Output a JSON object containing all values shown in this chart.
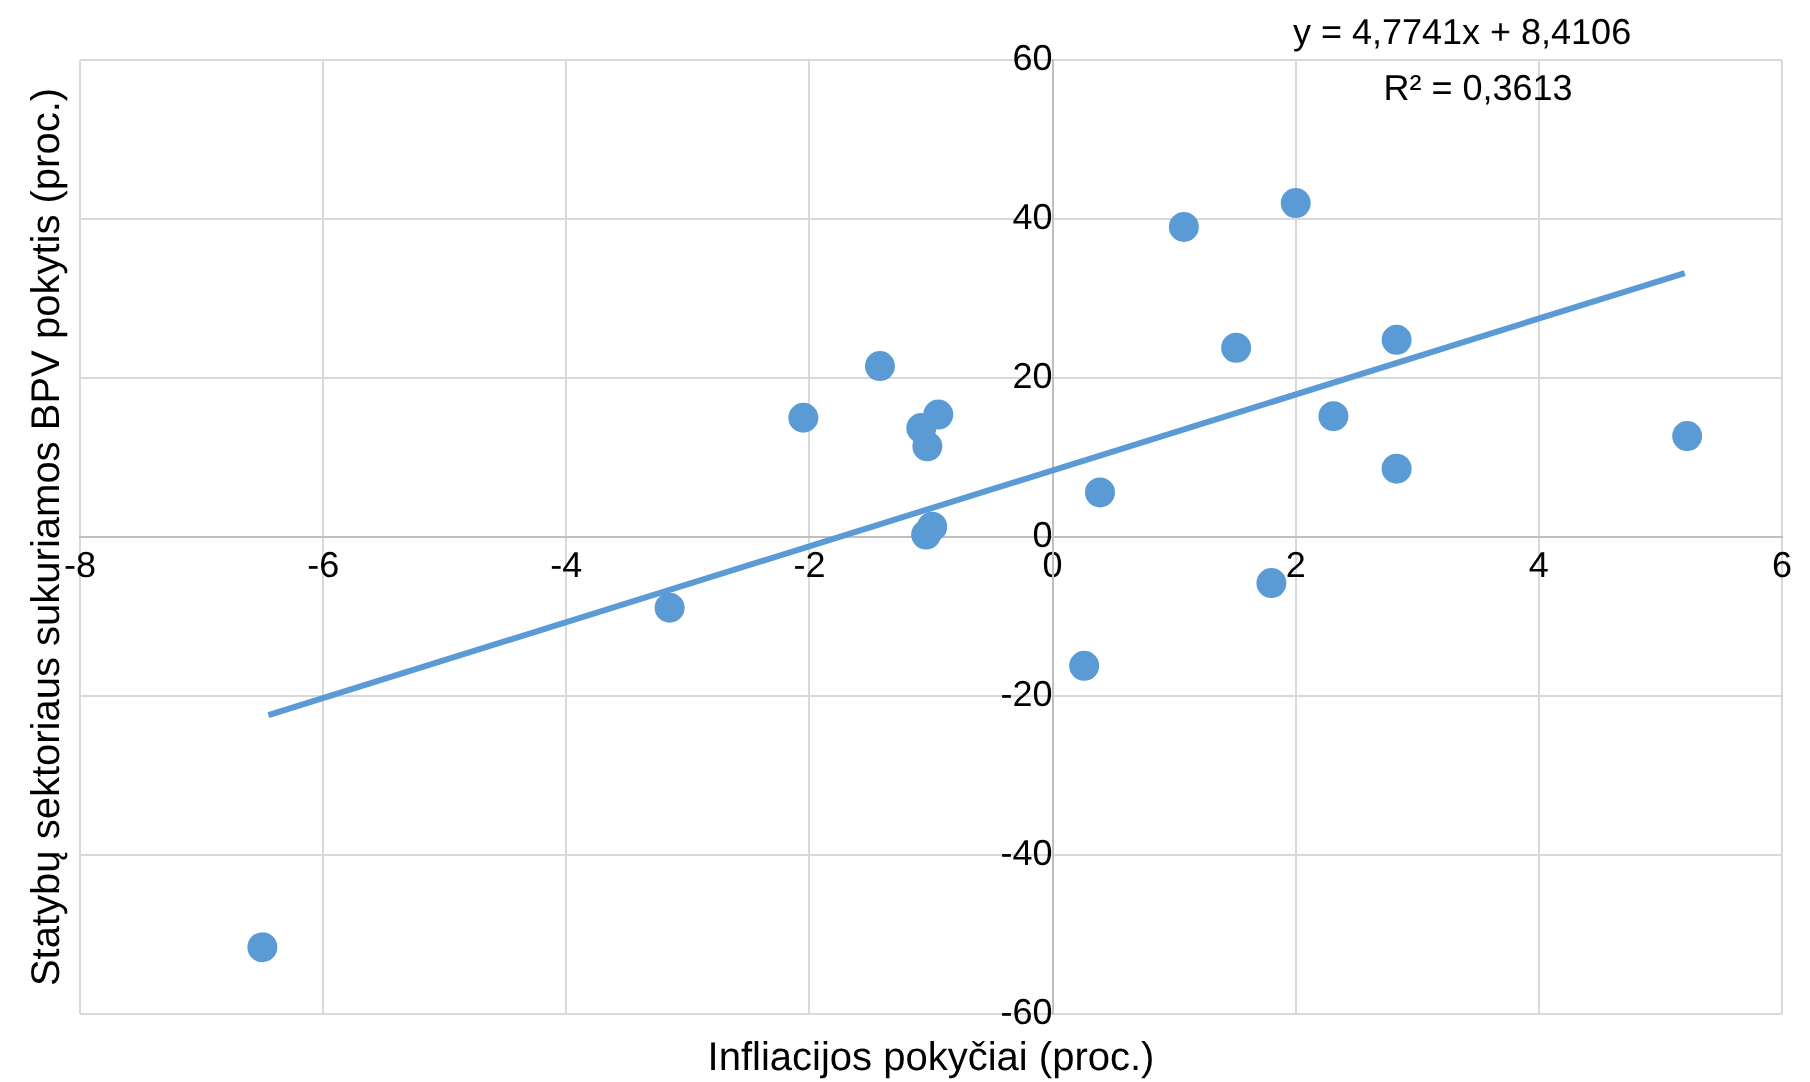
{
  "chart_data": {
    "type": "scatter",
    "xlabel": "Infliacijos pokyčiai (proc.)",
    "ylabel": "Statybų sektoriaus sukuriamos BPV pokytis (proc.)",
    "annotations": [
      "y = 4,7741x + 8,4106",
      "R² = 0,3613"
    ],
    "xlim": [
      -8,
      6
    ],
    "xticks": [
      -8,
      -6,
      -4,
      -2,
      0,
      2,
      4,
      6
    ],
    "ylim": [
      -60,
      60
    ],
    "yticks": [
      -60,
      -40,
      -20,
      0,
      20,
      40,
      60
    ],
    "grid": true,
    "legend": false,
    "marker": "circle",
    "series": [
      {
        "type": "scatter",
        "color": "#5b9bd5",
        "x": [
          -6.5,
          -3.15,
          -2.05,
          -1.42,
          -1.08,
          -1.03,
          -0.94,
          -0.99,
          -1.04,
          0.39,
          0.26,
          1.08,
          1.51,
          2.0,
          1.8,
          2.31,
          2.83,
          2.83,
          5.22
        ],
        "values": [
          -51.6,
          -8.9,
          15,
          21.5,
          13.7,
          11.4,
          15.4,
          1.3,
          0.3,
          5.6,
          -16.2,
          39,
          23.8,
          42,
          -5.8,
          15.2,
          24.8,
          8.6,
          12.7
        ]
      },
      {
        "type": "line",
        "color": "#5b9bd5",
        "marker": "none",
        "x": [
          -6.45,
          5.2
        ],
        "values": [
          -22.4,
          33.2
        ]
      }
    ]
  }
}
